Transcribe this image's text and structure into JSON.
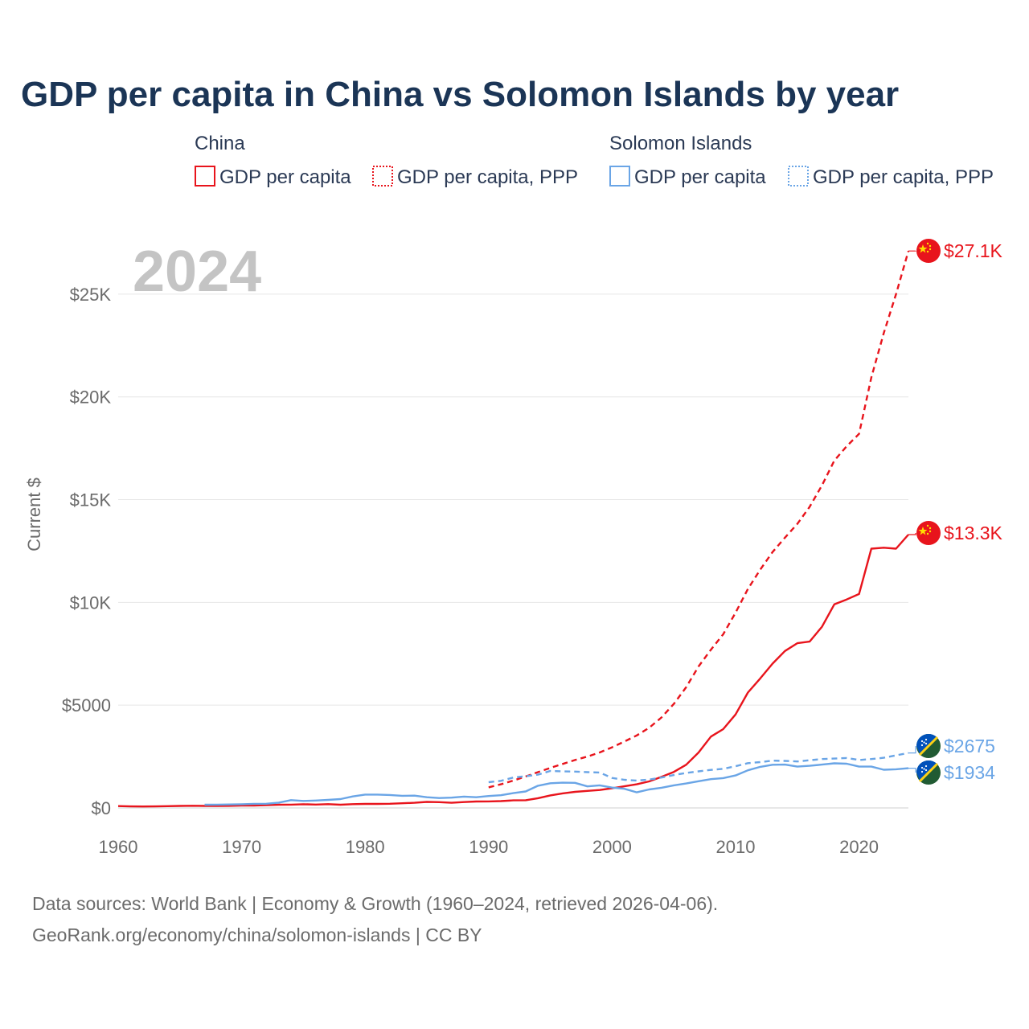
{
  "title": "GDP per capita in China vs Solomon Islands by year",
  "year_label": "2024",
  "legend": {
    "groups": [
      {
        "name": "China",
        "color": "#e8141c",
        "items": [
          {
            "label": "GDP per capita",
            "style": "solid"
          },
          {
            "label": "GDP per capita, PPP",
            "style": "dotted"
          }
        ]
      },
      {
        "name": "Solomon Islands",
        "color": "#6aa5e6",
        "items": [
          {
            "label": "GDP per capita",
            "style": "solid"
          },
          {
            "label": "GDP per capita, PPP",
            "style": "dotted"
          }
        ]
      }
    ]
  },
  "chart_data": {
    "type": "line",
    "title": "GDP per capita in China vs Solomon Islands by year",
    "xlabel": "",
    "ylabel": "Current $",
    "xlim": [
      1960,
      2024
    ],
    "ylim": [
      0,
      27500
    ],
    "x_ticks": [
      1960,
      1970,
      1980,
      1990,
      2000,
      2010,
      2020
    ],
    "x_tick_labels": [
      "1960",
      "1970",
      "1980",
      "1990",
      "2000",
      "2010",
      "2020"
    ],
    "y_ticks": [
      0,
      5000,
      10000,
      15000,
      20000,
      25000
    ],
    "y_tick_labels": [
      "$0",
      "$5000",
      "$10K",
      "$15K",
      "$20K",
      "$25K"
    ],
    "grid": true,
    "series": [
      {
        "name": "China GDP per capita",
        "country": "China",
        "style": "solid",
        "color": "#e8141c",
        "end_label": "$13.3K",
        "x": [
          1960,
          1961,
          1962,
          1963,
          1964,
          1965,
          1966,
          1967,
          1968,
          1969,
          1970,
          1971,
          1972,
          1973,
          1974,
          1975,
          1976,
          1977,
          1978,
          1979,
          1980,
          1981,
          1982,
          1983,
          1984,
          1985,
          1986,
          1987,
          1988,
          1989,
          1990,
          1991,
          1992,
          1993,
          1994,
          1995,
          1996,
          1997,
          1998,
          1999,
          2000,
          2001,
          2002,
          2003,
          2004,
          2005,
          2006,
          2007,
          2008,
          2009,
          2010,
          2011,
          2012,
          2013,
          2014,
          2015,
          2016,
          2017,
          2018,
          2019,
          2020,
          2021,
          2022,
          2023,
          2024
        ],
        "values": [
          90,
          76,
          71,
          74,
          85,
          98,
          104,
          97,
          92,
          100,
          113,
          119,
          132,
          157,
          160,
          178,
          165,
          185,
          156,
          183,
          195,
          197,
          203,
          225,
          250,
          294,
          282,
          252,
          284,
          311,
          318,
          333,
          366,
          377,
          473,
          610,
          709,
          782,
          829,
          873,
          959,
          1053,
          1149,
          1289,
          1509,
          1753,
          2099,
          2694,
          3468,
          3832,
          4550,
          5614,
          6301,
          7020,
          7636,
          8016,
          8094,
          8817,
          9905,
          10144,
          10409,
          12617,
          12662,
          12614,
          13300
        ]
      },
      {
        "name": "China GDP per capita, PPP",
        "country": "China",
        "style": "dotted",
        "color": "#e8141c",
        "end_label": "$27.1K",
        "x": [
          1990,
          1991,
          1992,
          1993,
          1994,
          1995,
          1996,
          1997,
          1998,
          1999,
          2000,
          2001,
          2002,
          2003,
          2004,
          2005,
          2006,
          2007,
          2008,
          2009,
          2010,
          2011,
          2012,
          2013,
          2014,
          2015,
          2016,
          2017,
          2018,
          2019,
          2020,
          2021,
          2022,
          2023,
          2024
        ],
        "values": [
          1000,
          1150,
          1330,
          1530,
          1740,
          1950,
          2140,
          2330,
          2500,
          2700,
          2950,
          3230,
          3530,
          3900,
          4400,
          5060,
          5870,
          6880,
          7700,
          8450,
          9500,
          10650,
          11600,
          12450,
          13150,
          13820,
          14650,
          15700,
          16900,
          17600,
          18200,
          20950,
          23100,
          25000,
          27100
        ]
      },
      {
        "name": "Solomon Islands GDP per capita",
        "country": "Solomon Islands",
        "style": "solid",
        "color": "#6aa5e6",
        "end_label": "$1934",
        "x": [
          1967,
          1968,
          1969,
          1970,
          1971,
          1972,
          1973,
          1974,
          1975,
          1976,
          1977,
          1978,
          1979,
          1980,
          1981,
          1982,
          1983,
          1984,
          1985,
          1986,
          1987,
          1988,
          1989,
          1990,
          1991,
          1992,
          1993,
          1994,
          1995,
          1996,
          1997,
          1998,
          1999,
          2000,
          2001,
          2002,
          2003,
          2004,
          2005,
          2006,
          2007,
          2008,
          2009,
          2010,
          2011,
          2012,
          2013,
          2014,
          2015,
          2016,
          2017,
          2018,
          2019,
          2020,
          2021,
          2022,
          2023,
          2024
        ],
        "values": [
          155,
          160,
          170,
          180,
          200,
          205,
          260,
          380,
          340,
          360,
          390,
          430,
          560,
          650,
          650,
          630,
          590,
          600,
          520,
          480,
          500,
          550,
          520,
          580,
          620,
          720,
          800,
          1080,
          1200,
          1230,
          1220,
          1050,
          1100,
          990,
          930,
          760,
          900,
          980,
          1100,
          1190,
          1300,
          1400,
          1450,
          1580,
          1830,
          2000,
          2100,
          2110,
          2010,
          2050,
          2110,
          2170,
          2150,
          2010,
          2010,
          1860,
          1880,
          1934
        ]
      },
      {
        "name": "Solomon Islands GDP per capita, PPP",
        "country": "Solomon Islands",
        "style": "dotted",
        "color": "#6aa5e6",
        "end_label": "$2675",
        "x": [
          1990,
          1991,
          1992,
          1993,
          1994,
          1995,
          1996,
          1997,
          1998,
          1999,
          2000,
          2001,
          2002,
          2003,
          2004,
          2005,
          2006,
          2007,
          2008,
          2009,
          2010,
          2011,
          2012,
          2013,
          2014,
          2015,
          2016,
          2017,
          2018,
          2019,
          2020,
          2021,
          2022,
          2023,
          2024
        ],
        "values": [
          1250,
          1320,
          1480,
          1540,
          1620,
          1800,
          1780,
          1770,
          1740,
          1720,
          1460,
          1370,
          1330,
          1380,
          1480,
          1600,
          1700,
          1780,
          1850,
          1900,
          2030,
          2180,
          2230,
          2300,
          2290,
          2260,
          2320,
          2380,
          2400,
          2430,
          2330,
          2380,
          2440,
          2560,
          2675
        ]
      }
    ]
  },
  "footer": {
    "line1": "Data sources: World Bank | Economy & Growth (1960–2024, retrieved 2026-04-06).",
    "line2": "GeoRank.org/economy/china/solomon-islands | CC BY"
  }
}
